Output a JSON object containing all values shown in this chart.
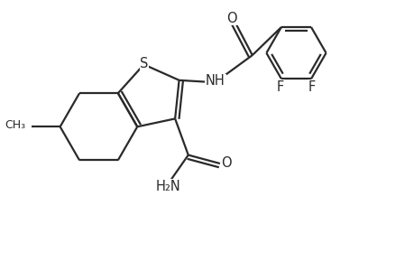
{
  "background_color": "#ffffff",
  "line_color": "#2a2a2a",
  "line_width": 1.6,
  "font_size": 10.5,
  "xlim": [
    0,
    9.2
  ],
  "ylim": [
    0,
    6.0
  ]
}
